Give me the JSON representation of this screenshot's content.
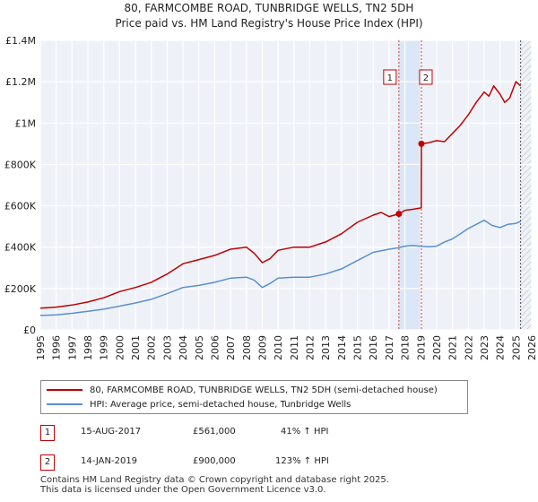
{
  "chart_data": {
    "type": "line",
    "title": "80, FARMCOMBE ROAD, TUNBRIDGE WELLS, TN2 5DH",
    "subtitle": "Price paid vs. HM Land Registry's House Price Index (HPI)",
    "xlim": [
      1995,
      2026
    ],
    "ylim": [
      0,
      1400000
    ],
    "y_ticks": [
      0,
      200000,
      400000,
      600000,
      800000,
      1000000,
      1200000,
      1400000
    ],
    "y_tick_labels": [
      "£0",
      "£200K",
      "£400K",
      "£600K",
      "£800K",
      "£1M",
      "£1.2M",
      "£1.4M"
    ],
    "x_ticks": [
      1995,
      1996,
      1997,
      1998,
      1999,
      2000,
      2001,
      2002,
      2003,
      2004,
      2005,
      2006,
      2007,
      2008,
      2009,
      2010,
      2011,
      2012,
      2013,
      2014,
      2015,
      2016,
      2017,
      2018,
      2019,
      2020,
      2021,
      2022,
      2023,
      2024,
      2025,
      2026
    ],
    "x_tick_labels": [
      "1995",
      "1996",
      "1997",
      "1998",
      "1999",
      "2000",
      "2001",
      "2002",
      "2003",
      "2004",
      "2005",
      "2006",
      "2007",
      "2008",
      "2009",
      "2010",
      "2011",
      "2012",
      "2013",
      "2014",
      "2015",
      "2016",
      "2017",
      "2018",
      "2019",
      "2020",
      "2021",
      "2022",
      "2023",
      "2024",
      "2025",
      "2026"
    ],
    "grid": true,
    "series": [
      {
        "name": "80, FARMCOMBE ROAD, TUNBRIDGE WELLS, TN2 5DH (semi-detached house)",
        "color": "#c00000",
        "x": [
          1995,
          1996,
          1997,
          1998,
          1999,
          2000,
          2001,
          2002,
          2003,
          2004,
          2005,
          2006,
          2007,
          2008,
          2008.5,
          2009,
          2009.5,
          2010,
          2011,
          2012,
          2013,
          2014,
          2015,
          2016,
          2016.5,
          2017,
          2017.62,
          2018,
          2018.5,
          2019.03,
          2019.04,
          2019.5,
          2020,
          2020.5,
          2021,
          2021.5,
          2022,
          2022.5,
          2023,
          2023.3,
          2023.6,
          2024,
          2024.3,
          2024.6,
          2025,
          2025.3
        ],
        "y": [
          105000,
          110000,
          120000,
          135000,
          155000,
          185000,
          205000,
          230000,
          270000,
          320000,
          340000,
          360000,
          390000,
          400000,
          370000,
          325000,
          345000,
          385000,
          400000,
          400000,
          425000,
          465000,
          520000,
          555000,
          568000,
          548000,
          561000,
          578000,
          583000,
          590000,
          900000,
          905000,
          915000,
          910000,
          950000,
          990000,
          1040000,
          1100000,
          1150000,
          1130000,
          1180000,
          1140000,
          1100000,
          1120000,
          1200000,
          1180000
        ]
      },
      {
        "name": "HPI: Average price, semi-detached house, Tunbridge Wells",
        "color": "#5b8fd0",
        "x": [
          1995,
          1996,
          1997,
          1998,
          1999,
          2000,
          2001,
          2002,
          2003,
          2004,
          2005,
          2006,
          2007,
          2008,
          2008.5,
          2009,
          2009.5,
          2010,
          2011,
          2012,
          2013,
          2014,
          2015,
          2016,
          2017,
          2017.62,
          2018,
          2018.5,
          2019,
          2019.5,
          2020,
          2020.5,
          2021,
          2021.5,
          2022,
          2022.5,
          2023,
          2023.5,
          2024,
          2024.5,
          2025,
          2025.3
        ],
        "y": [
          70000,
          73000,
          80000,
          90000,
          100000,
          115000,
          130000,
          148000,
          175000,
          205000,
          215000,
          230000,
          250000,
          255000,
          240000,
          205000,
          225000,
          250000,
          255000,
          255000,
          270000,
          295000,
          335000,
          375000,
          390000,
          398000,
          405000,
          408000,
          404000,
          402000,
          405000,
          425000,
          440000,
          465000,
          490000,
          510000,
          530000,
          505000,
          495000,
          510000,
          515000,
          525000
        ]
      }
    ],
    "markers": [
      {
        "id": "1",
        "x": 2017.62,
        "y": 561000
      },
      {
        "id": "2",
        "x": 2019.04,
        "y": 900000
      }
    ],
    "highlight_band": [
      2017.62,
      2019.04
    ],
    "end_marker_x": 2025.3
  },
  "legend": {
    "items": [
      {
        "label": "80, FARMCOMBE ROAD, TUNBRIDGE WELLS, TN2 5DH (semi-detached house)",
        "color": "#c00000"
      },
      {
        "label": "HPI: Average price, semi-detached house, Tunbridge Wells",
        "color": "#5b8fd0"
      }
    ]
  },
  "transactions": [
    {
      "num": "1",
      "date": "15-AUG-2017",
      "price": "£561,000",
      "hpi": "41% ↑ HPI"
    },
    {
      "num": "2",
      "date": "14-JAN-2019",
      "price": "£900,000",
      "hpi": "123% ↑ HPI"
    }
  ],
  "footer": {
    "line1": "Contains HM Land Registry data © Crown copyright and database right 2025.",
    "line2": "This data is licensed under the Open Government Licence v3.0."
  }
}
